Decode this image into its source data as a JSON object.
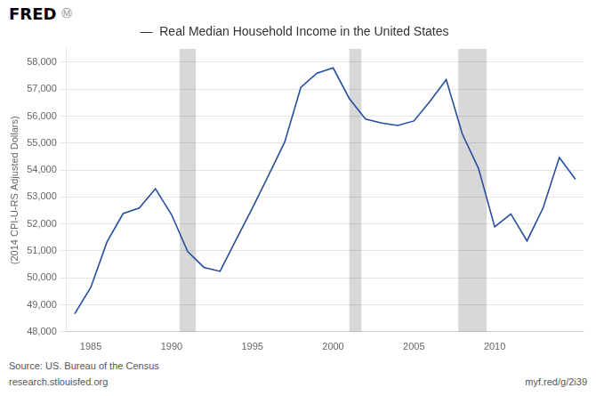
{
  "chart_data": {
    "type": "line",
    "title": "—  Real Median Household Income in the United States",
    "ylabel": "(2014 CPI-U-RS Adjusted Dollars)",
    "x": [
      1984,
      1985,
      1986,
      1987,
      1988,
      1989,
      1990,
      1991,
      1992,
      1993,
      1994,
      1995,
      1996,
      1997,
      1998,
      1999,
      2000,
      2001,
      2002,
      2003,
      2004,
      2005,
      2006,
      2007,
      2008,
      2009,
      2010,
      2011,
      2012,
      2013,
      2014,
      2015
    ],
    "values": [
      48665,
      49646,
      51332,
      52385,
      52590,
      53306,
      52343,
      50971,
      50390,
      50241,
      51421,
      52587,
      53798,
      55038,
      57067,
      57594,
      57790,
      56654,
      55890,
      55746,
      55653,
      55822,
      56553,
      57357,
      55330,
      54059,
      51892,
      52374,
      51371,
      52600,
      54462,
      53657
    ],
    "color": "#254f9e",
    "xlim": [
      1983.5,
      2015.5
    ],
    "xticks": [
      1985,
      1990,
      1995,
      2000,
      2005,
      2010
    ],
    "ylim": [
      48000,
      58500
    ],
    "yticks": [
      {
        "value": 48000,
        "label": "48,000"
      },
      {
        "value": 49000,
        "label": "49,000"
      },
      {
        "value": 50000,
        "label": "50,000"
      },
      {
        "value": 51000,
        "label": "51,000"
      },
      {
        "value": 52000,
        "label": "52,000"
      },
      {
        "value": 53000,
        "label": "53,000"
      },
      {
        "value": 54000,
        "label": "54,000"
      },
      {
        "value": 55000,
        "label": "55,000"
      },
      {
        "value": 56000,
        "label": "56,000"
      },
      {
        "value": 57000,
        "label": "57,000"
      },
      {
        "value": 58000,
        "label": "58,000"
      }
    ],
    "grid": "y",
    "recession_bands": [
      [
        1990.5,
        1991.5
      ],
      [
        2001.0,
        2001.75
      ],
      [
        2007.75,
        2009.5
      ]
    ],
    "recession_color": "#d8d8d8",
    "annotations": [
      "FRED",
      "Ⓜ",
      "Source: US. Bureau of the Census",
      "research.stlouisfed.org",
      "myf.red/g/2i39"
    ]
  }
}
